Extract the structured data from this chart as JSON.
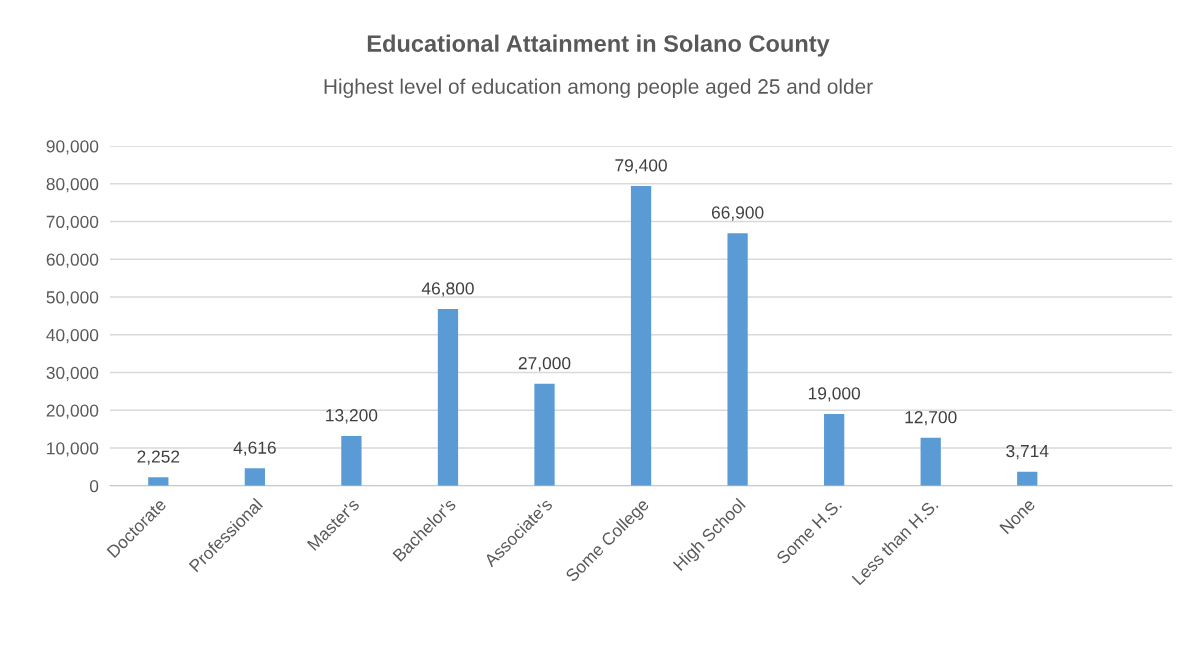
{
  "chart_data": {
    "type": "bar",
    "title": "Educational Attainment in Solano County",
    "subtitle": "Highest level of education among people aged 25 and older",
    "categories": [
      "Doctorate",
      "Professional",
      "Master's",
      "Bachelor's",
      "Associate's",
      "Some College",
      "High School",
      "Some H.S.",
      "Less than H.S.",
      "None",
      null
    ],
    "values": [
      2252,
      4616,
      13200,
      46800,
      27000,
      79400,
      66900,
      19000,
      12700,
      3714,
      null
    ],
    "color": "#5b9bd5",
    "ylim": [
      0,
      90000
    ],
    "yticks": [
      {
        "value": 0,
        "label": "0"
      },
      {
        "value": 10000,
        "label": "10,000"
      },
      {
        "value": 20000,
        "label": "20,000"
      },
      {
        "value": 30000,
        "label": "30,000"
      },
      {
        "value": 40000,
        "label": "40,000"
      },
      {
        "value": 50000,
        "label": "50,000"
      },
      {
        "value": 60000,
        "label": "60,000"
      },
      {
        "value": 70000,
        "label": "70,000"
      },
      {
        "value": 80000,
        "label": "80,000"
      },
      {
        "value": 90000,
        "label": "90,000"
      }
    ],
    "value_labels": [
      "2,252",
      "4,616",
      "13,200",
      "46,800",
      "27,000",
      "79,400",
      "66,900",
      "19,000",
      "12,700",
      "3,714",
      null
    ],
    "grid": "y",
    "legend": false
  }
}
